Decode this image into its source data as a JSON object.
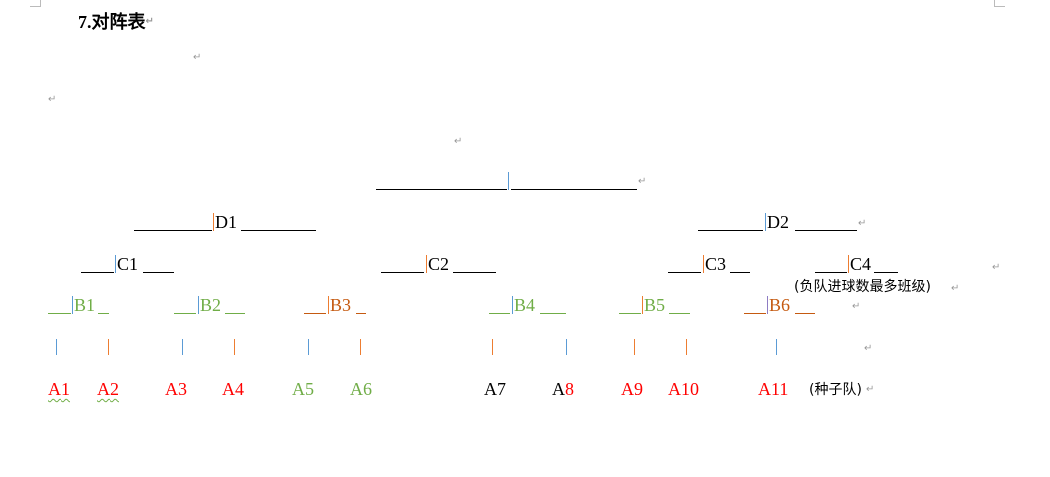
{
  "title": "7.对阵表",
  "colors": {
    "green": "#70ad47",
    "orange": "#c55a11",
    "red": "#ff0000",
    "bar_blue": "#5b9bd5",
    "bar_orange": "#ed7d31"
  },
  "bracket": {
    "final": {
      "label": ""
    },
    "semis": [
      {
        "label": "D1"
      },
      {
        "label": "D2"
      }
    ],
    "quarters": [
      {
        "label": "C1"
      },
      {
        "label": "C2"
      },
      {
        "label": "C3"
      },
      {
        "label": "C4",
        "note": "(负队进球数最多班级)"
      }
    ],
    "round1": [
      {
        "label": "B1"
      },
      {
        "label": "B2"
      },
      {
        "label": "B3"
      },
      {
        "label": "B4"
      },
      {
        "label": "B5"
      },
      {
        "label": "B6"
      }
    ],
    "teams": [
      {
        "prefix": "A",
        "number": "1"
      },
      {
        "prefix": "A",
        "number": "2"
      },
      {
        "prefix": "A",
        "number": "3"
      },
      {
        "prefix": "A",
        "number": "4"
      },
      {
        "prefix": "A",
        "number": "5"
      },
      {
        "prefix": "A",
        "number": "6"
      },
      {
        "prefix": "A",
        "number": "7"
      },
      {
        "prefix": "A",
        "number": "8"
      },
      {
        "prefix": "A",
        "number": "9"
      },
      {
        "prefix": "A",
        "number": "10"
      },
      {
        "prefix": "A",
        "number": "11"
      }
    ],
    "seed_note": "(种子队)"
  },
  "paragraph_mark": "↵"
}
